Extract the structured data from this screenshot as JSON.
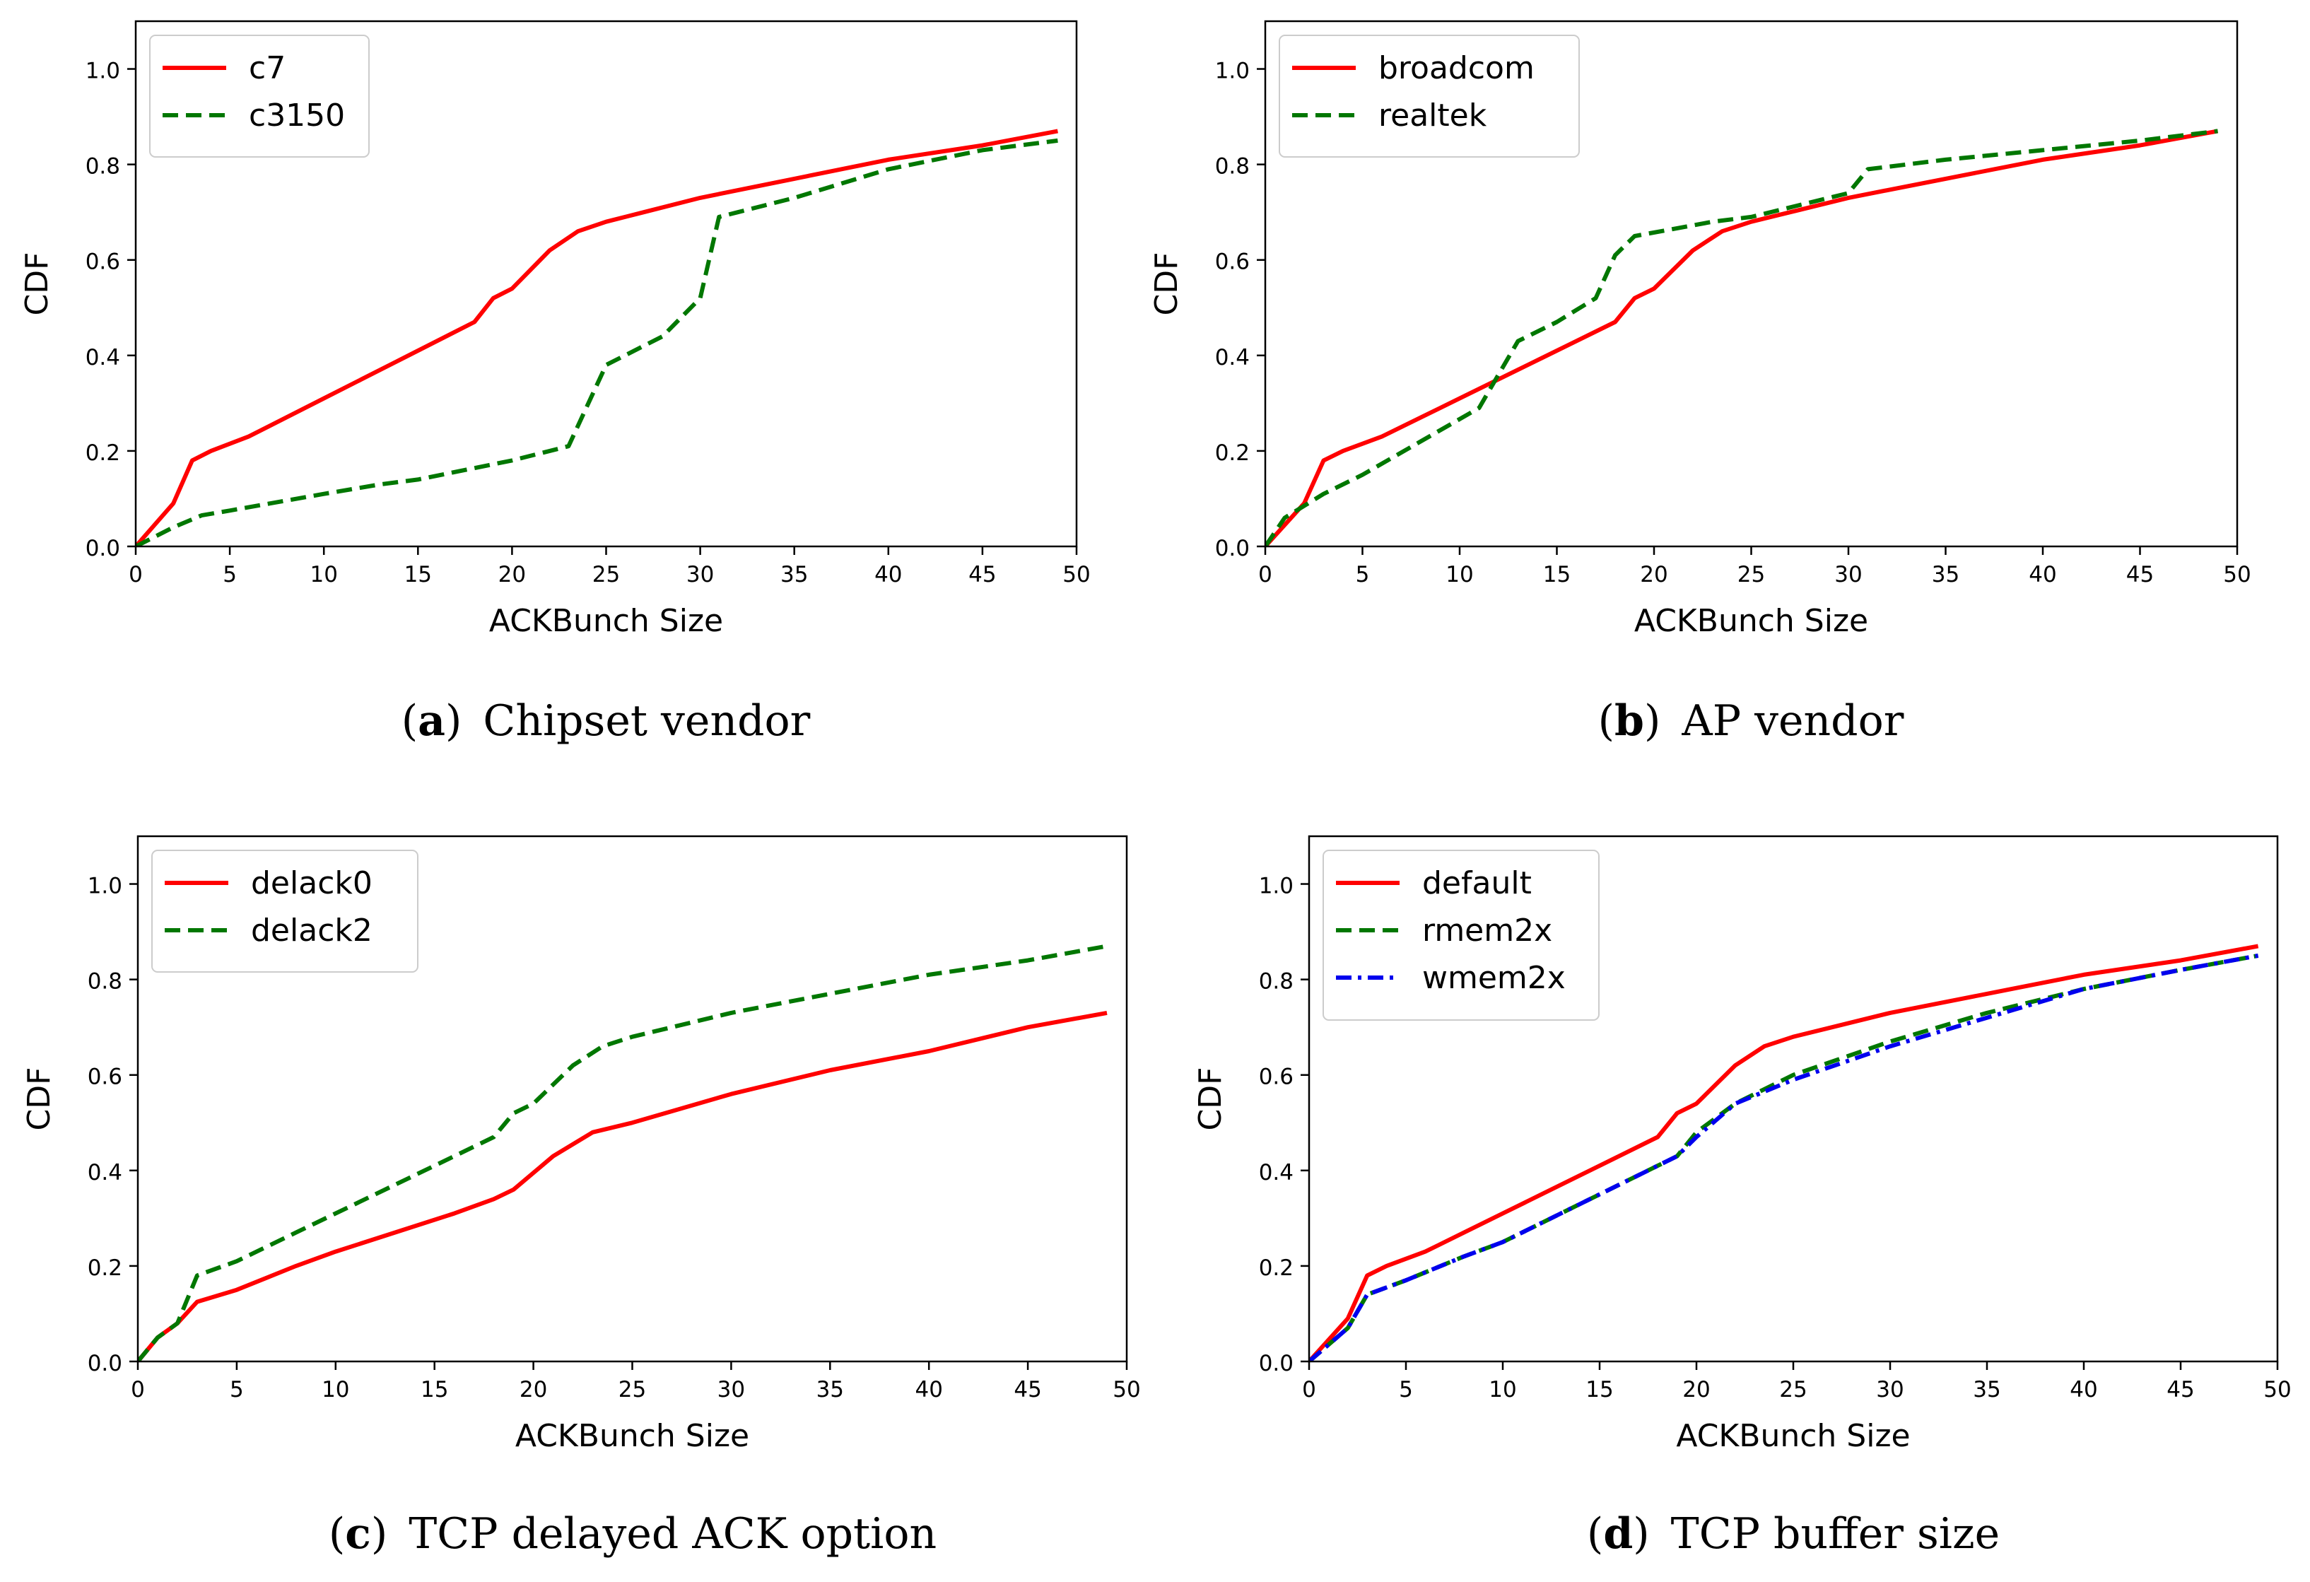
{
  "chart_data": [
    {
      "type": "line",
      "caption_letter": "a",
      "caption_text": "Chipset vendor",
      "xlabel": "ACKBunch Size",
      "ylabel": "CDF",
      "xlim": [
        0,
        50
      ],
      "ylim": [
        0,
        1.1
      ],
      "xticks": [
        "0",
        "5",
        "10",
        "15",
        "20",
        "25",
        "30",
        "35",
        "40",
        "45",
        "50"
      ],
      "yticks": [
        "0.0",
        "0.2",
        "0.4",
        "0.6",
        "0.8",
        "1.0"
      ],
      "legend_position": "top-left",
      "series": [
        {
          "name": "c7",
          "color": "#ff0000",
          "style": "solid",
          "x": [
            0,
            2,
            3,
            4,
            6,
            8,
            10,
            12,
            14,
            16,
            18,
            19,
            20,
            22,
            23.5,
            25,
            27,
            30,
            35,
            40,
            45,
            49
          ],
          "y": [
            0,
            0.09,
            0.18,
            0.2,
            0.23,
            0.27,
            0.31,
            0.35,
            0.39,
            0.43,
            0.47,
            0.52,
            0.54,
            0.62,
            0.66,
            0.68,
            0.7,
            0.73,
            0.77,
            0.81,
            0.84,
            0.87
          ]
        },
        {
          "name": "c3150",
          "color": "#007700",
          "style": "dashed",
          "x": [
            0,
            2,
            3.5,
            5,
            10,
            13,
            15,
            20,
            23,
            25,
            28,
            30,
            31,
            32,
            35,
            40,
            45,
            49
          ],
          "y": [
            0,
            0.04,
            0.065,
            0.075,
            0.11,
            0.13,
            0.14,
            0.18,
            0.21,
            0.38,
            0.44,
            0.52,
            0.69,
            0.7,
            0.73,
            0.79,
            0.83,
            0.85
          ]
        }
      ]
    },
    {
      "type": "line",
      "caption_letter": "b",
      "caption_text": "AP vendor",
      "xlabel": "ACKBunch Size",
      "ylabel": "CDF",
      "xlim": [
        0,
        50
      ],
      "ylim": [
        0,
        1.1
      ],
      "xticks": [
        "0",
        "5",
        "10",
        "15",
        "20",
        "25",
        "30",
        "35",
        "40",
        "45",
        "50"
      ],
      "yticks": [
        "0.0",
        "0.2",
        "0.4",
        "0.6",
        "0.8",
        "1.0"
      ],
      "legend_position": "top-left",
      "series": [
        {
          "name": "broadcom",
          "color": "#ff0000",
          "style": "solid",
          "x": [
            0,
            2,
            3,
            4,
            6,
            8,
            10,
            12,
            14,
            16,
            18,
            19,
            20,
            22,
            23.5,
            25,
            27,
            30,
            35,
            40,
            45,
            49
          ],
          "y": [
            0,
            0.09,
            0.18,
            0.2,
            0.23,
            0.27,
            0.31,
            0.35,
            0.39,
            0.43,
            0.47,
            0.52,
            0.54,
            0.62,
            0.66,
            0.68,
            0.7,
            0.73,
            0.77,
            0.81,
            0.84,
            0.87
          ]
        },
        {
          "name": "realtek",
          "color": "#007700",
          "style": "dashed",
          "x": [
            0,
            1,
            3,
            5,
            8,
            11,
            13,
            15,
            17,
            18,
            19,
            23,
            25,
            27,
            30,
            31,
            35,
            40,
            45,
            49
          ],
          "y": [
            0,
            0.06,
            0.11,
            0.15,
            0.22,
            0.29,
            0.43,
            0.47,
            0.52,
            0.61,
            0.65,
            0.68,
            0.69,
            0.71,
            0.74,
            0.79,
            0.81,
            0.83,
            0.85,
            0.87
          ]
        }
      ]
    },
    {
      "type": "line",
      "caption_letter": "c",
      "caption_text": "TCP delayed ACK option",
      "xlabel": "ACKBunch Size",
      "ylabel": "CDF",
      "xlim": [
        0,
        50
      ],
      "ylim": [
        0,
        1.1
      ],
      "xticks": [
        "0",
        "5",
        "10",
        "15",
        "20",
        "25",
        "30",
        "35",
        "40",
        "45",
        "50"
      ],
      "yticks": [
        "0.0",
        "0.2",
        "0.4",
        "0.6",
        "0.8",
        "1.0"
      ],
      "legend_position": "top-left",
      "series": [
        {
          "name": "delack0",
          "color": "#ff0000",
          "style": "solid",
          "x": [
            0,
            1,
            2,
            3,
            5,
            8,
            10,
            13,
            16,
            18,
            19,
            21,
            23,
            25,
            30,
            35,
            40,
            45,
            49
          ],
          "y": [
            0,
            0.05,
            0.08,
            0.125,
            0.15,
            0.2,
            0.23,
            0.27,
            0.31,
            0.34,
            0.36,
            0.43,
            0.48,
            0.5,
            0.56,
            0.61,
            0.65,
            0.7,
            0.73
          ]
        },
        {
          "name": "delack2",
          "color": "#007700",
          "style": "dashed",
          "x": [
            0,
            1,
            2,
            3,
            5,
            8,
            10,
            12,
            14,
            16,
            18,
            19,
            20,
            22,
            23.5,
            25,
            27,
            30,
            35,
            40,
            45,
            49
          ],
          "y": [
            0,
            0.05,
            0.08,
            0.18,
            0.21,
            0.27,
            0.31,
            0.35,
            0.39,
            0.43,
            0.47,
            0.52,
            0.54,
            0.62,
            0.66,
            0.68,
            0.7,
            0.73,
            0.77,
            0.81,
            0.84,
            0.87
          ]
        }
      ]
    },
    {
      "type": "line",
      "caption_letter": "d",
      "caption_text": "TCP buffer size",
      "xlabel": "ACKBunch Size",
      "ylabel": "CDF",
      "xlim": [
        0,
        50
      ],
      "ylim": [
        0,
        1.1
      ],
      "xticks": [
        "0",
        "5",
        "10",
        "15",
        "20",
        "25",
        "30",
        "35",
        "40",
        "45",
        "50"
      ],
      "yticks": [
        "0.0",
        "0.2",
        "0.4",
        "0.6",
        "0.8",
        "1.0"
      ],
      "legend_position": "top-left",
      "series": [
        {
          "name": "default",
          "color": "#ff0000",
          "style": "solid",
          "x": [
            0,
            2,
            3,
            4,
            6,
            8,
            10,
            12,
            14,
            16,
            18,
            19,
            20,
            22,
            23.5,
            25,
            27,
            30,
            35,
            40,
            45,
            49
          ],
          "y": [
            0,
            0.09,
            0.18,
            0.2,
            0.23,
            0.27,
            0.31,
            0.35,
            0.39,
            0.43,
            0.47,
            0.52,
            0.54,
            0.62,
            0.66,
            0.68,
            0.7,
            0.73,
            0.77,
            0.81,
            0.84,
            0.87
          ]
        },
        {
          "name": "rmem2x",
          "color": "#007700",
          "style": "dashed",
          "x": [
            0,
            2,
            3,
            5,
            8,
            10,
            12,
            15,
            18,
            19,
            20,
            22,
            25,
            30,
            35,
            40,
            45,
            49
          ],
          "y": [
            0,
            0.07,
            0.14,
            0.17,
            0.22,
            0.25,
            0.29,
            0.35,
            0.41,
            0.43,
            0.48,
            0.54,
            0.6,
            0.67,
            0.73,
            0.78,
            0.82,
            0.85
          ]
        },
        {
          "name": "wmem2x",
          "color": "#0000ee",
          "style": "dashdot",
          "x": [
            0,
            2,
            3,
            5,
            8,
            10,
            12,
            15,
            18,
            19,
            20,
            22,
            25,
            30,
            35,
            40,
            45,
            49
          ],
          "y": [
            0,
            0.07,
            0.14,
            0.17,
            0.22,
            0.25,
            0.29,
            0.35,
            0.41,
            0.43,
            0.47,
            0.54,
            0.59,
            0.66,
            0.72,
            0.78,
            0.82,
            0.85
          ]
        }
      ]
    }
  ]
}
